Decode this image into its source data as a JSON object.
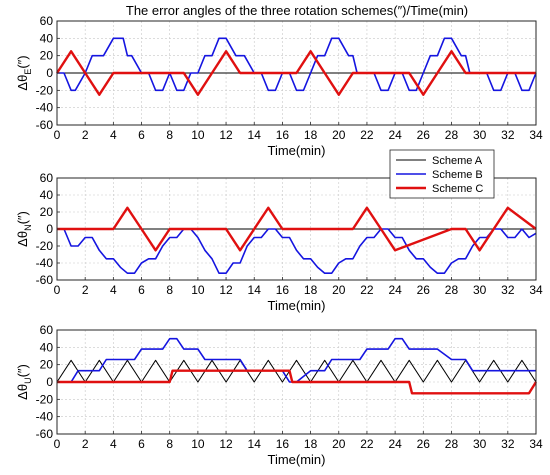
{
  "figure_title": "The error angles of the three rotation schemes(″)/Time(min)",
  "colors": {
    "Scheme A": "#000000",
    "Scheme B": "#1515e0",
    "Scheme C": "#e01010"
  },
  "legend": {
    "entries": [
      "Scheme A",
      "Scheme B",
      "Scheme C"
    ],
    "placement": "between panels 1 and 2, right"
  },
  "chart_data": [
    {
      "type": "line",
      "xlabel": "Time(min)",
      "ylabel": "Δθ",
      "ylabel_sub": "E",
      "ylabel_unit": "(″)",
      "xlim": [
        0,
        34
      ],
      "ylim": [
        -60,
        60
      ],
      "xticks": [
        0,
        2,
        4,
        6,
        8,
        10,
        12,
        14,
        16,
        18,
        20,
        22,
        24,
        26,
        28,
        30,
        32,
        34
      ],
      "yticks": [
        -60,
        -40,
        -20,
        0,
        20,
        40,
        60
      ],
      "grid": true,
      "series": [
        {
          "name": "Scheme A",
          "x": [
            0,
            34
          ],
          "y": [
            0,
            0
          ]
        },
        {
          "name": "Scheme B",
          "x": [
            0,
            0.5,
            1,
            1.3,
            2,
            2.5,
            3,
            3.3,
            4,
            4.7,
            5,
            5.3,
            6,
            6.5,
            7,
            7.5,
            8,
            8.5,
            9,
            9.5,
            10,
            10.5,
            11,
            11.5,
            12,
            12.7,
            13,
            13.3,
            14,
            14.5,
            15,
            15.5,
            16,
            16.5,
            17,
            17.5,
            18,
            18.5,
            19,
            19.5,
            20,
            20.7,
            21,
            21.3,
            22,
            22.5,
            23,
            23.5,
            24,
            24.5,
            25,
            25.5,
            26,
            26.5,
            27,
            27.5,
            28,
            28.7,
            29,
            29.3,
            30,
            30.5,
            31,
            31.5,
            32,
            32.5,
            33,
            33.5,
            34
          ],
          "y": [
            0,
            0,
            -20,
            -20,
            0,
            20,
            20,
            20,
            40,
            40,
            20,
            20,
            0,
            0,
            -20,
            -20,
            0,
            -20,
            -20,
            0,
            0,
            20,
            20,
            40,
            40,
            20,
            20,
            20,
            0,
            0,
            -20,
            -20,
            0,
            0,
            -20,
            -20,
            0,
            20,
            20,
            40,
            40,
            20,
            20,
            0,
            0,
            0,
            -20,
            -20,
            0,
            0,
            -20,
            -20,
            0,
            20,
            20,
            40,
            40,
            20,
            20,
            0,
            0,
            0,
            -20,
            -20,
            0,
            0,
            -20,
            -20,
            0
          ]
        },
        {
          "name": "Scheme C",
          "x": [
            0,
            1,
            2,
            3,
            4,
            9,
            10,
            11,
            12,
            13,
            17,
            18,
            19,
            20,
            21,
            25,
            26,
            27,
            28,
            29,
            34
          ],
          "y": [
            0,
            25,
            0,
            -25,
            0,
            0,
            -25,
            0,
            25,
            0,
            0,
            25,
            0,
            -25,
            0,
            0,
            -25,
            0,
            25,
            0,
            0
          ]
        }
      ]
    },
    {
      "type": "line",
      "xlabel": "Time(min)",
      "ylabel": "Δθ",
      "ylabel_sub": "N",
      "ylabel_unit": "(″)",
      "xlim": [
        0,
        34
      ],
      "ylim": [
        -60,
        60
      ],
      "xticks": [
        0,
        2,
        4,
        6,
        8,
        10,
        12,
        14,
        16,
        18,
        20,
        22,
        24,
        26,
        28,
        30,
        32,
        34
      ],
      "yticks": [
        -60,
        -40,
        -20,
        0,
        20,
        40,
        60
      ],
      "grid": true,
      "series": [
        {
          "name": "Scheme A",
          "x": [
            0,
            34
          ],
          "y": [
            0,
            0
          ]
        },
        {
          "name": "Scheme B",
          "x": [
            0,
            0.5,
            1,
            1.5,
            2,
            2.5,
            3,
            3.5,
            4,
            4.5,
            5,
            5.5,
            6,
            6.5,
            7,
            7.5,
            8,
            8.5,
            9,
            9.5,
            10,
            10.5,
            11,
            11.5,
            12,
            12.5,
            13,
            13.5,
            14,
            14.5,
            15,
            15.5,
            16,
            16.5,
            17,
            17.5,
            18,
            18.5,
            19,
            19.5,
            20,
            20.5,
            21,
            21.5,
            22,
            22.5,
            23,
            23.5,
            24,
            24.5,
            25,
            25.5,
            26,
            26.5,
            27,
            27.5,
            28,
            28.5,
            29,
            29.5,
            30,
            30.5,
            31,
            31.5,
            32,
            32.5,
            33,
            33.5,
            34
          ],
          "y": [
            0,
            0,
            -20,
            -20,
            -10,
            -10,
            -25,
            -35,
            -35,
            -45,
            -52,
            -52,
            -40,
            -35,
            -35,
            -20,
            -10,
            -10,
            0,
            0,
            -10,
            -25,
            -35,
            -52,
            -52,
            -40,
            -40,
            -20,
            -10,
            -10,
            0,
            0,
            -10,
            -10,
            -25,
            -35,
            -35,
            -45,
            -52,
            -52,
            -40,
            -35,
            -35,
            -20,
            -10,
            -10,
            0,
            0,
            -10,
            -10,
            -25,
            -35,
            -35,
            -45,
            -52,
            -52,
            -40,
            -35,
            -35,
            -20,
            -10,
            -10,
            0,
            0,
            -10,
            -10,
            0,
            -10,
            -5
          ]
        },
        {
          "name": "Scheme C",
          "x": [
            0,
            4,
            5,
            6,
            7,
            8,
            12,
            13,
            14,
            15,
            16,
            20,
            21,
            22,
            23,
            24,
            28,
            29,
            30,
            31,
            32,
            34
          ],
          "y": [
            0,
            0,
            25,
            0,
            -25,
            0,
            0,
            -25,
            0,
            25,
            0,
            0,
            0,
            25,
            0,
            -25,
            0,
            0,
            -25,
            0,
            25,
            0
          ]
        }
      ]
    },
    {
      "type": "line",
      "xlabel": "Time(min)",
      "ylabel": "Δθ",
      "ylabel_sub": "U",
      "ylabel_unit": "(″)",
      "xlim": [
        0,
        34
      ],
      "ylim": [
        -60,
        60
      ],
      "xticks": [
        0,
        2,
        4,
        6,
        8,
        10,
        12,
        14,
        16,
        18,
        20,
        22,
        24,
        26,
        28,
        30,
        32,
        34
      ],
      "yticks": [
        -60,
        -40,
        -20,
        0,
        20,
        40,
        60
      ],
      "grid": true,
      "series": [
        {
          "name": "Scheme A",
          "x": [
            0,
            1,
            2,
            3,
            4,
            5,
            6,
            7,
            8,
            9,
            10,
            11,
            12,
            13,
            14,
            15,
            16,
            17,
            18,
            19,
            20,
            21,
            22,
            23,
            24,
            25,
            26,
            27,
            28,
            29,
            30,
            31,
            32,
            33,
            34
          ],
          "y": [
            0,
            25,
            0,
            25,
            0,
            25,
            0,
            25,
            0,
            25,
            0,
            25,
            0,
            25,
            0,
            25,
            0,
            25,
            0,
            25,
            0,
            25,
            0,
            25,
            0,
            25,
            0,
            25,
            0,
            25,
            0,
            25,
            0,
            25,
            0
          ]
        },
        {
          "name": "Scheme B",
          "x": [
            0,
            1,
            1.5,
            3,
            3.5,
            5.5,
            6,
            7.5,
            8,
            8.5,
            9,
            10,
            10.5,
            12,
            13,
            13.5,
            14,
            16,
            16.5,
            17,
            18,
            19,
            19.5,
            21.5,
            22,
            23.5,
            24,
            24.5,
            25,
            27,
            28,
            29,
            29.5,
            31,
            32,
            32.5,
            34
          ],
          "y": [
            0,
            0,
            13,
            13,
            26,
            26,
            38,
            38,
            50,
            50,
            38,
            38,
            26,
            26,
            26,
            13,
            13,
            13,
            0,
            0,
            13,
            13,
            26,
            26,
            38,
            38,
            50,
            50,
            38,
            38,
            26,
            26,
            13,
            13,
            13,
            13,
            13
          ]
        },
        {
          "name": "Scheme C",
          "x": [
            0,
            8,
            8.2,
            16.5,
            16.7,
            25,
            25.2,
            33.5,
            34
          ],
          "y": [
            0,
            0,
            13,
            13,
            0,
            0,
            -13,
            -13,
            0
          ]
        }
      ]
    }
  ]
}
